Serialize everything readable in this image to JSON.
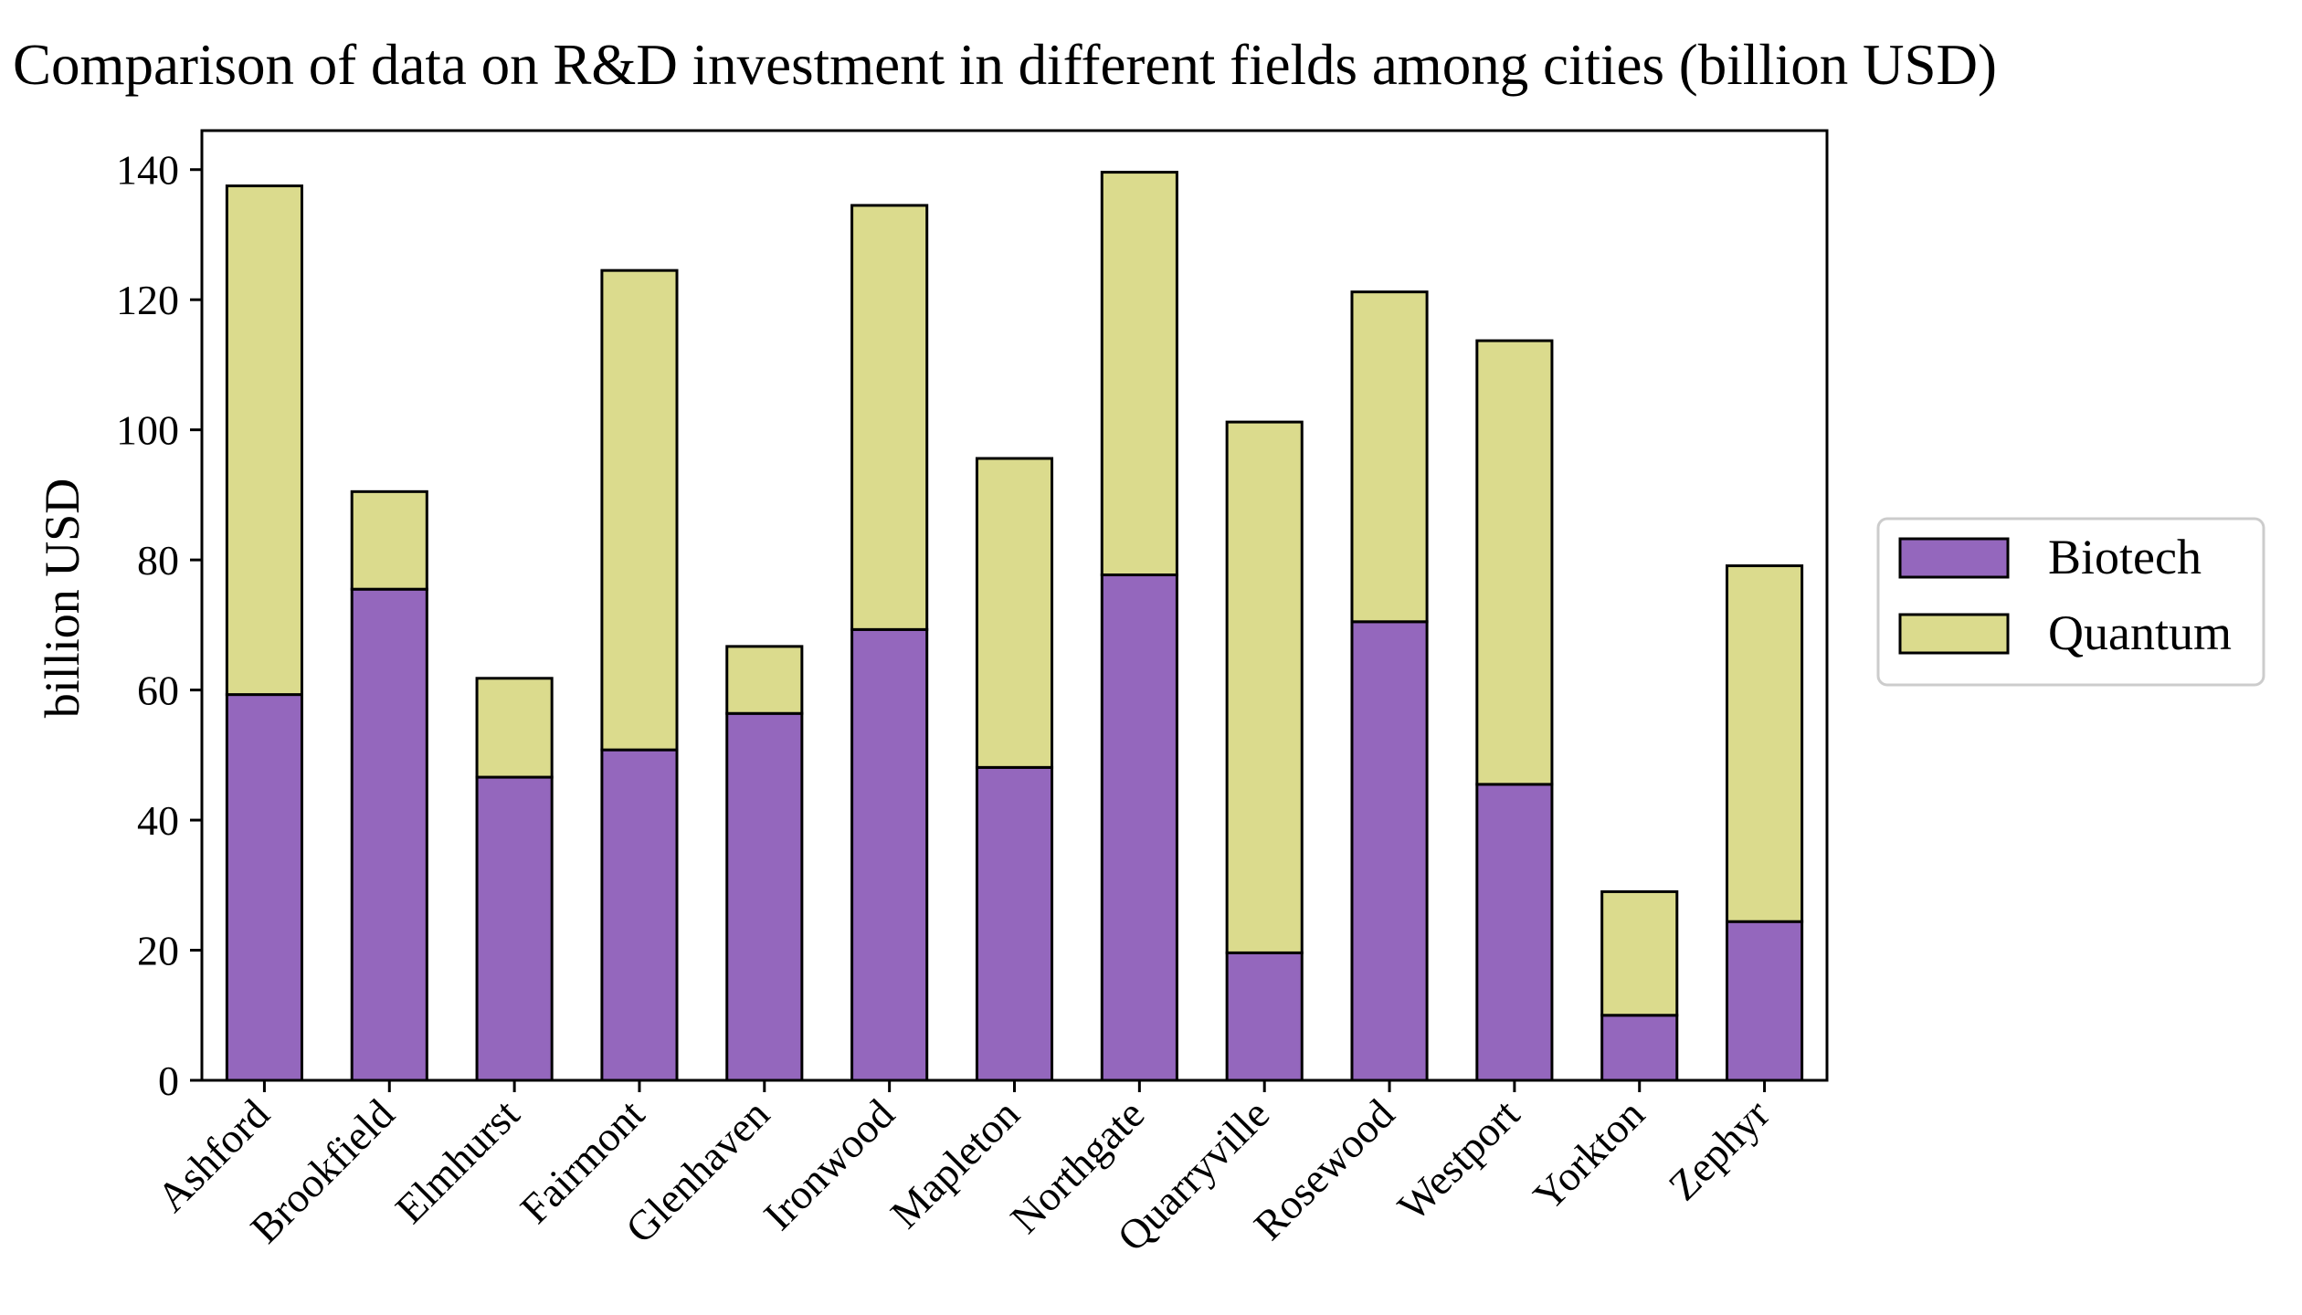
{
  "chart_data": {
    "type": "bar",
    "stacked": true,
    "title": "Comparison of data on R&D investment in different fields among cities (billion USD)",
    "xlabel": "",
    "ylabel": "billion USD",
    "ylim": [
      0,
      146
    ],
    "yticks": [
      0,
      20,
      40,
      60,
      80,
      100,
      120,
      140
    ],
    "grid": false,
    "legend_position": "right, outside plot",
    "categories": [
      "Ashford",
      "Brookfield",
      "Elmhurst",
      "Fairmont",
      "Glenhaven",
      "Ironwood",
      "Mapleton",
      "Northgate",
      "Quarryville",
      "Rosewood",
      "Westport",
      "Yorkton",
      "Zephyr"
    ],
    "series": [
      {
        "name": "Biotech",
        "color": "#9467bd",
        "values": [
          59.3,
          75.5,
          46.6,
          50.8,
          56.4,
          69.3,
          48.1,
          77.7,
          19.6,
          70.5,
          45.5,
          10.0,
          24.4
        ]
      },
      {
        "name": "Quantum",
        "color": "#dbdb8d",
        "values": [
          78.2,
          15.0,
          15.2,
          73.7,
          10.3,
          65.2,
          47.5,
          61.9,
          81.6,
          50.7,
          68.2,
          19.0,
          54.7
        ]
      }
    ]
  }
}
